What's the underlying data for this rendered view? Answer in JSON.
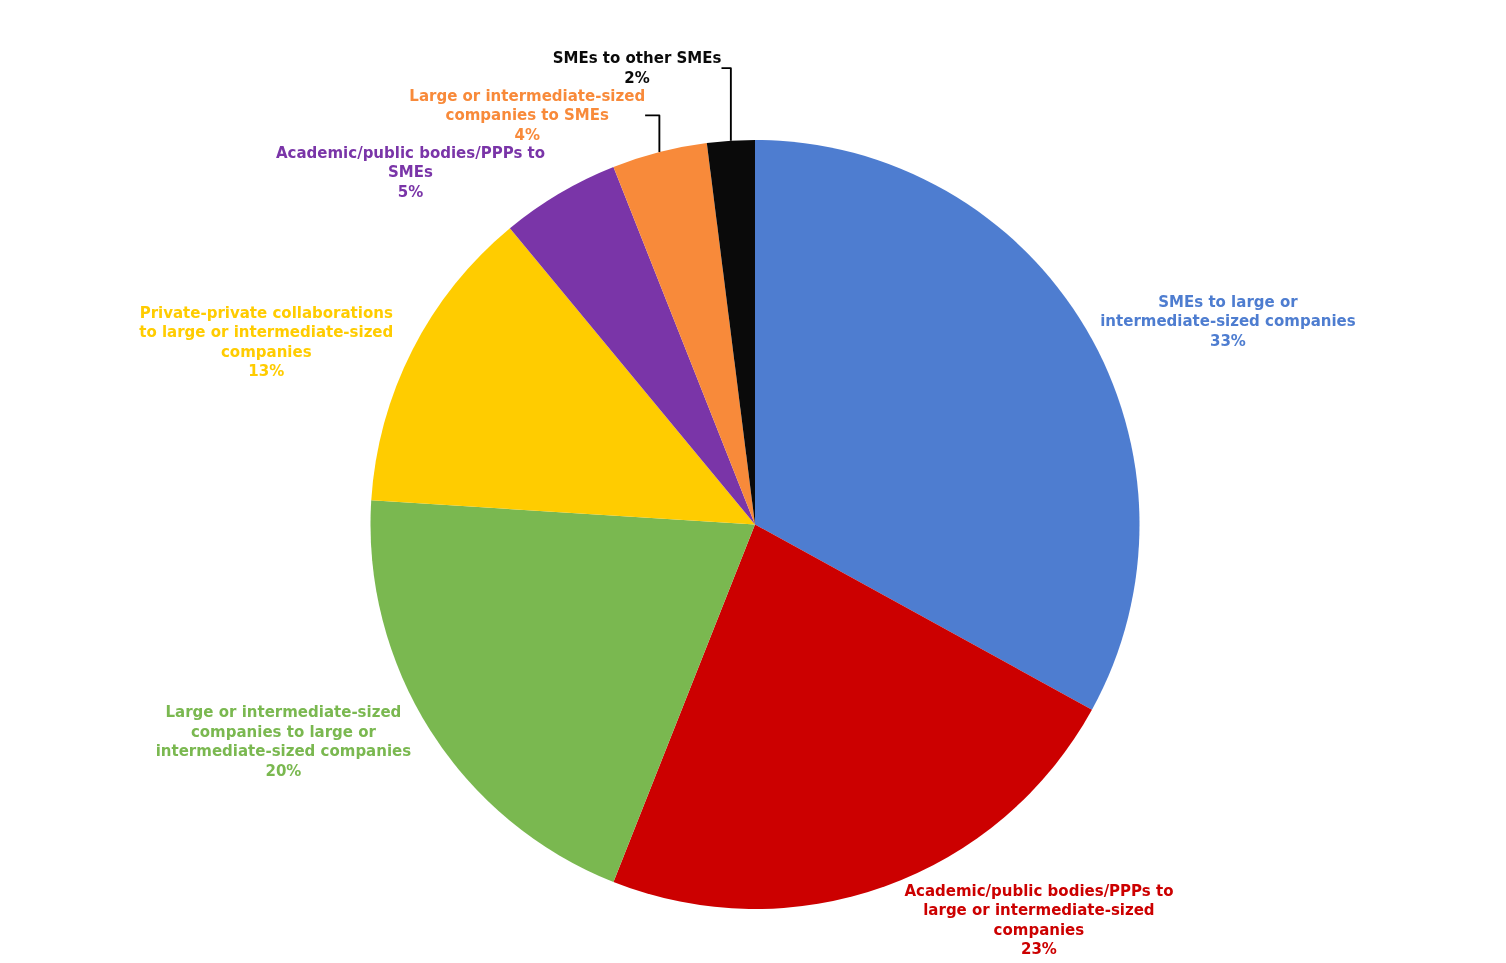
{
  "chart_data": {
    "type": "pie",
    "categories": [
      "SMEs to large or intermediate-sized companies",
      "Academic/public bodies/PPPs to large or intermediate-sized companies",
      "Large or intermediate-sized companies to large or intermediate-sized companies",
      "Private-private collaborations to large or intermediate-sized companies",
      "Academic/public bodies/PPPs to SMEs",
      "Large or intermediate-sized companies to SMEs",
      "SMEs to other SMEs"
    ],
    "values": [
      33,
      23,
      20,
      13,
      5,
      4,
      2
    ],
    "value_labels": [
      "33%",
      "23%",
      "20%",
      "13%",
      "5%",
      "4%",
      "2%"
    ],
    "colors": [
      "#4e7dd0",
      "#cc0000",
      "#7ab850",
      "#ffcc00",
      "#7a35a8",
      "#f88a3a",
      "#0a0a0a"
    ],
    "legend": false
  }
}
